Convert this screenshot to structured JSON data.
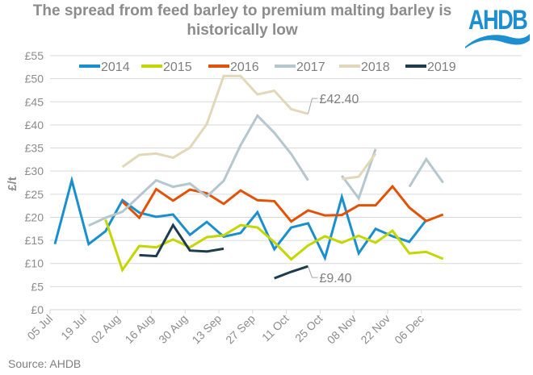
{
  "header": {
    "title": "The spread from feed barley to premium malting barley is historically low",
    "logo_text": "AHDB",
    "logo_color": "#1d8ed0"
  },
  "footer": {
    "source": "Source: AHDB"
  },
  "chart_data": {
    "type": "line",
    "title": "The spread from feed barley to premium malting barley is historically low",
    "xlabel": "",
    "ylabel": "£/t",
    "ylim": [
      0,
      55
    ],
    "yticks": [
      0,
      5,
      10,
      15,
      20,
      25,
      30,
      35,
      40,
      45,
      50,
      55
    ],
    "ytick_labels": [
      "£0",
      "£5",
      "£10",
      "£15",
      "£20",
      "£25",
      "£30",
      "£35",
      "£40",
      "£45",
      "£50",
      "£55"
    ],
    "grid": true,
    "legend_position": "top",
    "x_tick_labels": [
      "05 Jul",
      "19 Jul",
      "02 Aug",
      "16 Aug",
      "30 Aug",
      "13 Sep",
      "27 Sep",
      "11 Oct",
      "25 Oct",
      "08 Nov",
      "22 Nov",
      "06 Dec"
    ],
    "x_weeks": [
      "05 Jul",
      "12 Jul",
      "19 Jul",
      "26 Jul",
      "02 Aug",
      "09 Aug",
      "16 Aug",
      "23 Aug",
      "30 Aug",
      "06 Sep",
      "13 Sep",
      "20 Sep",
      "27 Sep",
      "04 Oct",
      "11 Oct",
      "18 Oct",
      "25 Oct",
      "01 Nov",
      "08 Nov",
      "15 Nov",
      "22 Nov",
      "29 Nov",
      "06 Dec",
      "13 Dec"
    ],
    "series": [
      {
        "name": "2014",
        "color": "#1a8fd0",
        "values": [
          14.2,
          28.0,
          14.2,
          17.0,
          23.7,
          21.0,
          20.1,
          20.6,
          16.2,
          19.0,
          15.8,
          16.6,
          21.1,
          13.1,
          17.8,
          18.7,
          11.2,
          24.4,
          12.2,
          17.5,
          15.9,
          14.7,
          19.4,
          null
        ]
      },
      {
        "name": "2015",
        "color": "#c4d600",
        "values": [
          null,
          null,
          null,
          19.5,
          8.6,
          13.8,
          13.5,
          15.2,
          13.5,
          15.7,
          16.1,
          18.3,
          17.8,
          14.6,
          10.9,
          13.9,
          15.9,
          14.5,
          16.0,
          14.5,
          17.1,
          12.2,
          12.5,
          11.0
        ]
      },
      {
        "name": "2016",
        "color": "#e05206",
        "values": [
          null,
          null,
          null,
          null,
          23.4,
          19.9,
          26.1,
          23.6,
          26.0,
          25.2,
          22.9,
          25.8,
          23.7,
          23.5,
          19.1,
          21.5,
          20.4,
          20.5,
          22.6,
          22.6,
          26.7,
          22.1,
          19.2,
          20.6
        ]
      },
      {
        "name": "2017",
        "color": "#b5c7ce",
        "values": [
          null,
          null,
          18.2,
          19.9,
          21.2,
          24.6,
          28.0,
          26.6,
          27.3,
          24.5,
          27.9,
          35.6,
          42.0,
          38.3,
          33.7,
          28.0,
          null,
          29.0,
          24.1,
          34.8,
          null,
          26.6,
          32.6,
          27.5
        ]
      },
      {
        "name": "2018",
        "color": "#e2d7b8",
        "values": [
          null,
          null,
          null,
          null,
          30.9,
          33.5,
          33.8,
          32.9,
          35.1,
          40.2,
          50.6,
          50.6,
          46.6,
          47.4,
          43.4,
          42.4,
          null,
          28.3,
          28.8,
          33.8,
          null,
          null,
          null,
          null
        ]
      },
      {
        "name": "2019",
        "color": "#1d3c4e",
        "values": [
          null,
          null,
          null,
          null,
          null,
          11.8,
          11.6,
          18.3,
          12.8,
          12.6,
          13.2,
          null,
          null,
          6.8,
          8.2,
          9.4,
          null,
          null,
          null,
          null,
          null,
          null,
          null,
          null
        ]
      }
    ],
    "annotations": [
      {
        "text": "£42.40",
        "series": "2018",
        "x": "18 Oct",
        "value": 42.4
      },
      {
        "text": "£9.40",
        "series": "2019",
        "x": "18 Oct",
        "value": 9.4
      }
    ]
  }
}
